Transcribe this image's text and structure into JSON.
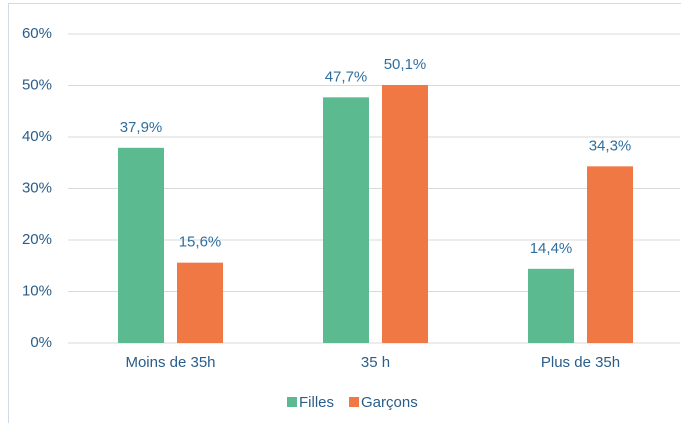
{
  "chart_data": {
    "type": "bar",
    "categories": [
      "Moins de 35h",
      "35 h",
      "Plus de 35h"
    ],
    "series": [
      {
        "name": "Filles",
        "color": "#5bba8f",
        "values": [
          37.9,
          47.7,
          14.4
        ],
        "value_labels": [
          "37,9%",
          "47,7%",
          "14,4%"
        ]
      },
      {
        "name": "Garçons",
        "color": "#f07844",
        "values": [
          15.6,
          50.1,
          34.3
        ],
        "value_labels": [
          "15,6%",
          "50,1%",
          "34,3%"
        ]
      }
    ],
    "ylim": [
      0,
      60
    ],
    "yticks": [
      {
        "value": 0,
        "label": "0%"
      },
      {
        "value": 10,
        "label": "10%"
      },
      {
        "value": 20,
        "label": "20%"
      },
      {
        "value": 30,
        "label": "30%"
      },
      {
        "value": 40,
        "label": "40%"
      },
      {
        "value": 50,
        "label": "50%"
      },
      {
        "value": 60,
        "label": "60%"
      }
    ],
    "grid": true,
    "legend": "bottom"
  }
}
